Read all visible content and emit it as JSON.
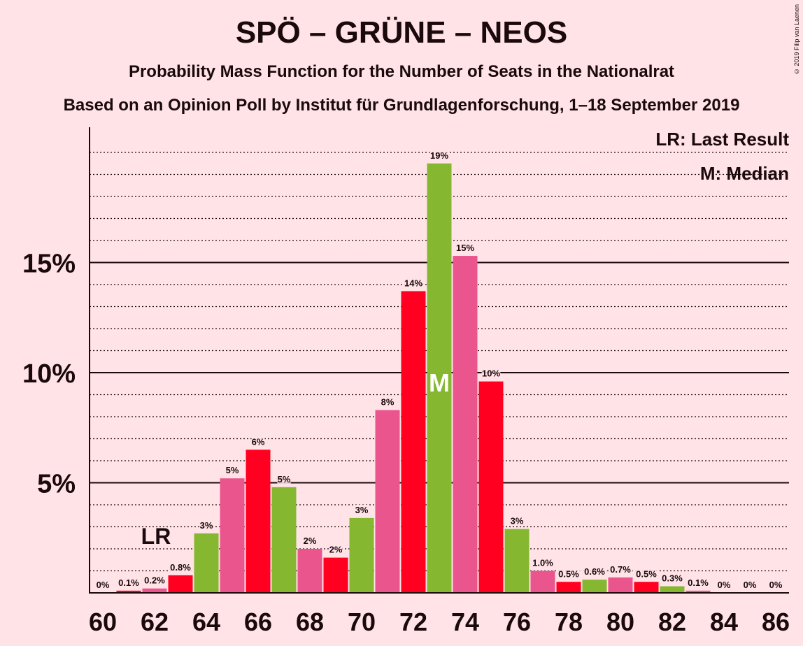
{
  "title": "SPÖ – GRÜNE – NEOS",
  "subtitle": "Probability Mass Function for the Number of Seats in the Nationalrat",
  "subtitle2": "Based on an Opinion Poll by Institut für Grundlagenforschung, 1–18 September 2019",
  "copyright": "© 2019 Filip van Laenen",
  "legend": {
    "last_result": "LR: Last Result",
    "median": "M: Median"
  },
  "colors": {
    "background": "#FFE3E6",
    "pink": "#EB558E",
    "red": "#FF0021",
    "green": "#86B731",
    "text": "#1a0a0d"
  },
  "chart_data": {
    "type": "bar",
    "categories": [
      60,
      61,
      62,
      63,
      64,
      65,
      66,
      67,
      68,
      69,
      70,
      71,
      72,
      73,
      74,
      75,
      76,
      77,
      78,
      79,
      80,
      81,
      82,
      83,
      84,
      85,
      86
    ],
    "values": [
      0,
      0.1,
      0.2,
      0.8,
      2.7,
      5.2,
      6.5,
      4.8,
      2.0,
      1.6,
      3.4,
      8.3,
      13.7,
      19.5,
      15.3,
      9.6,
      2.9,
      1.0,
      0.5,
      0.6,
      0.7,
      0.5,
      0.3,
      0.1,
      0,
      0,
      0
    ],
    "data_labels": [
      "0%",
      "0.1%",
      "0.2%",
      "0.8%",
      "3%",
      "5%",
      "6%",
      "5%",
      "2%",
      "2%",
      "3%",
      "8%",
      "14%",
      "19%",
      "15%",
      "10%",
      "3%",
      "1.0%",
      "0.5%",
      "0.6%",
      "0.7%",
      "0.5%",
      "0.3%",
      "0.1%",
      "0%",
      "0%",
      "0%"
    ],
    "bar_colors": [
      "pink",
      "red",
      "pink",
      "red",
      "green",
      "pink",
      "red",
      "green",
      "pink",
      "red",
      "green",
      "pink",
      "red",
      "green",
      "pink",
      "red",
      "green",
      "pink",
      "red",
      "green",
      "pink",
      "red",
      "green",
      "pink",
      "red",
      "green",
      "pink"
    ],
    "x_tick_labels": [
      "60",
      "62",
      "64",
      "66",
      "68",
      "70",
      "72",
      "74",
      "76",
      "78",
      "80",
      "82",
      "84",
      "86"
    ],
    "y_tick_labels": [
      "5%",
      "10%",
      "15%"
    ],
    "y_ticks": [
      5,
      10,
      15
    ],
    "ylim": [
      0,
      21
    ],
    "last_result_seat": 62,
    "last_result_label": "LR",
    "median_seat": 73,
    "median_label": "M",
    "grid": true
  }
}
